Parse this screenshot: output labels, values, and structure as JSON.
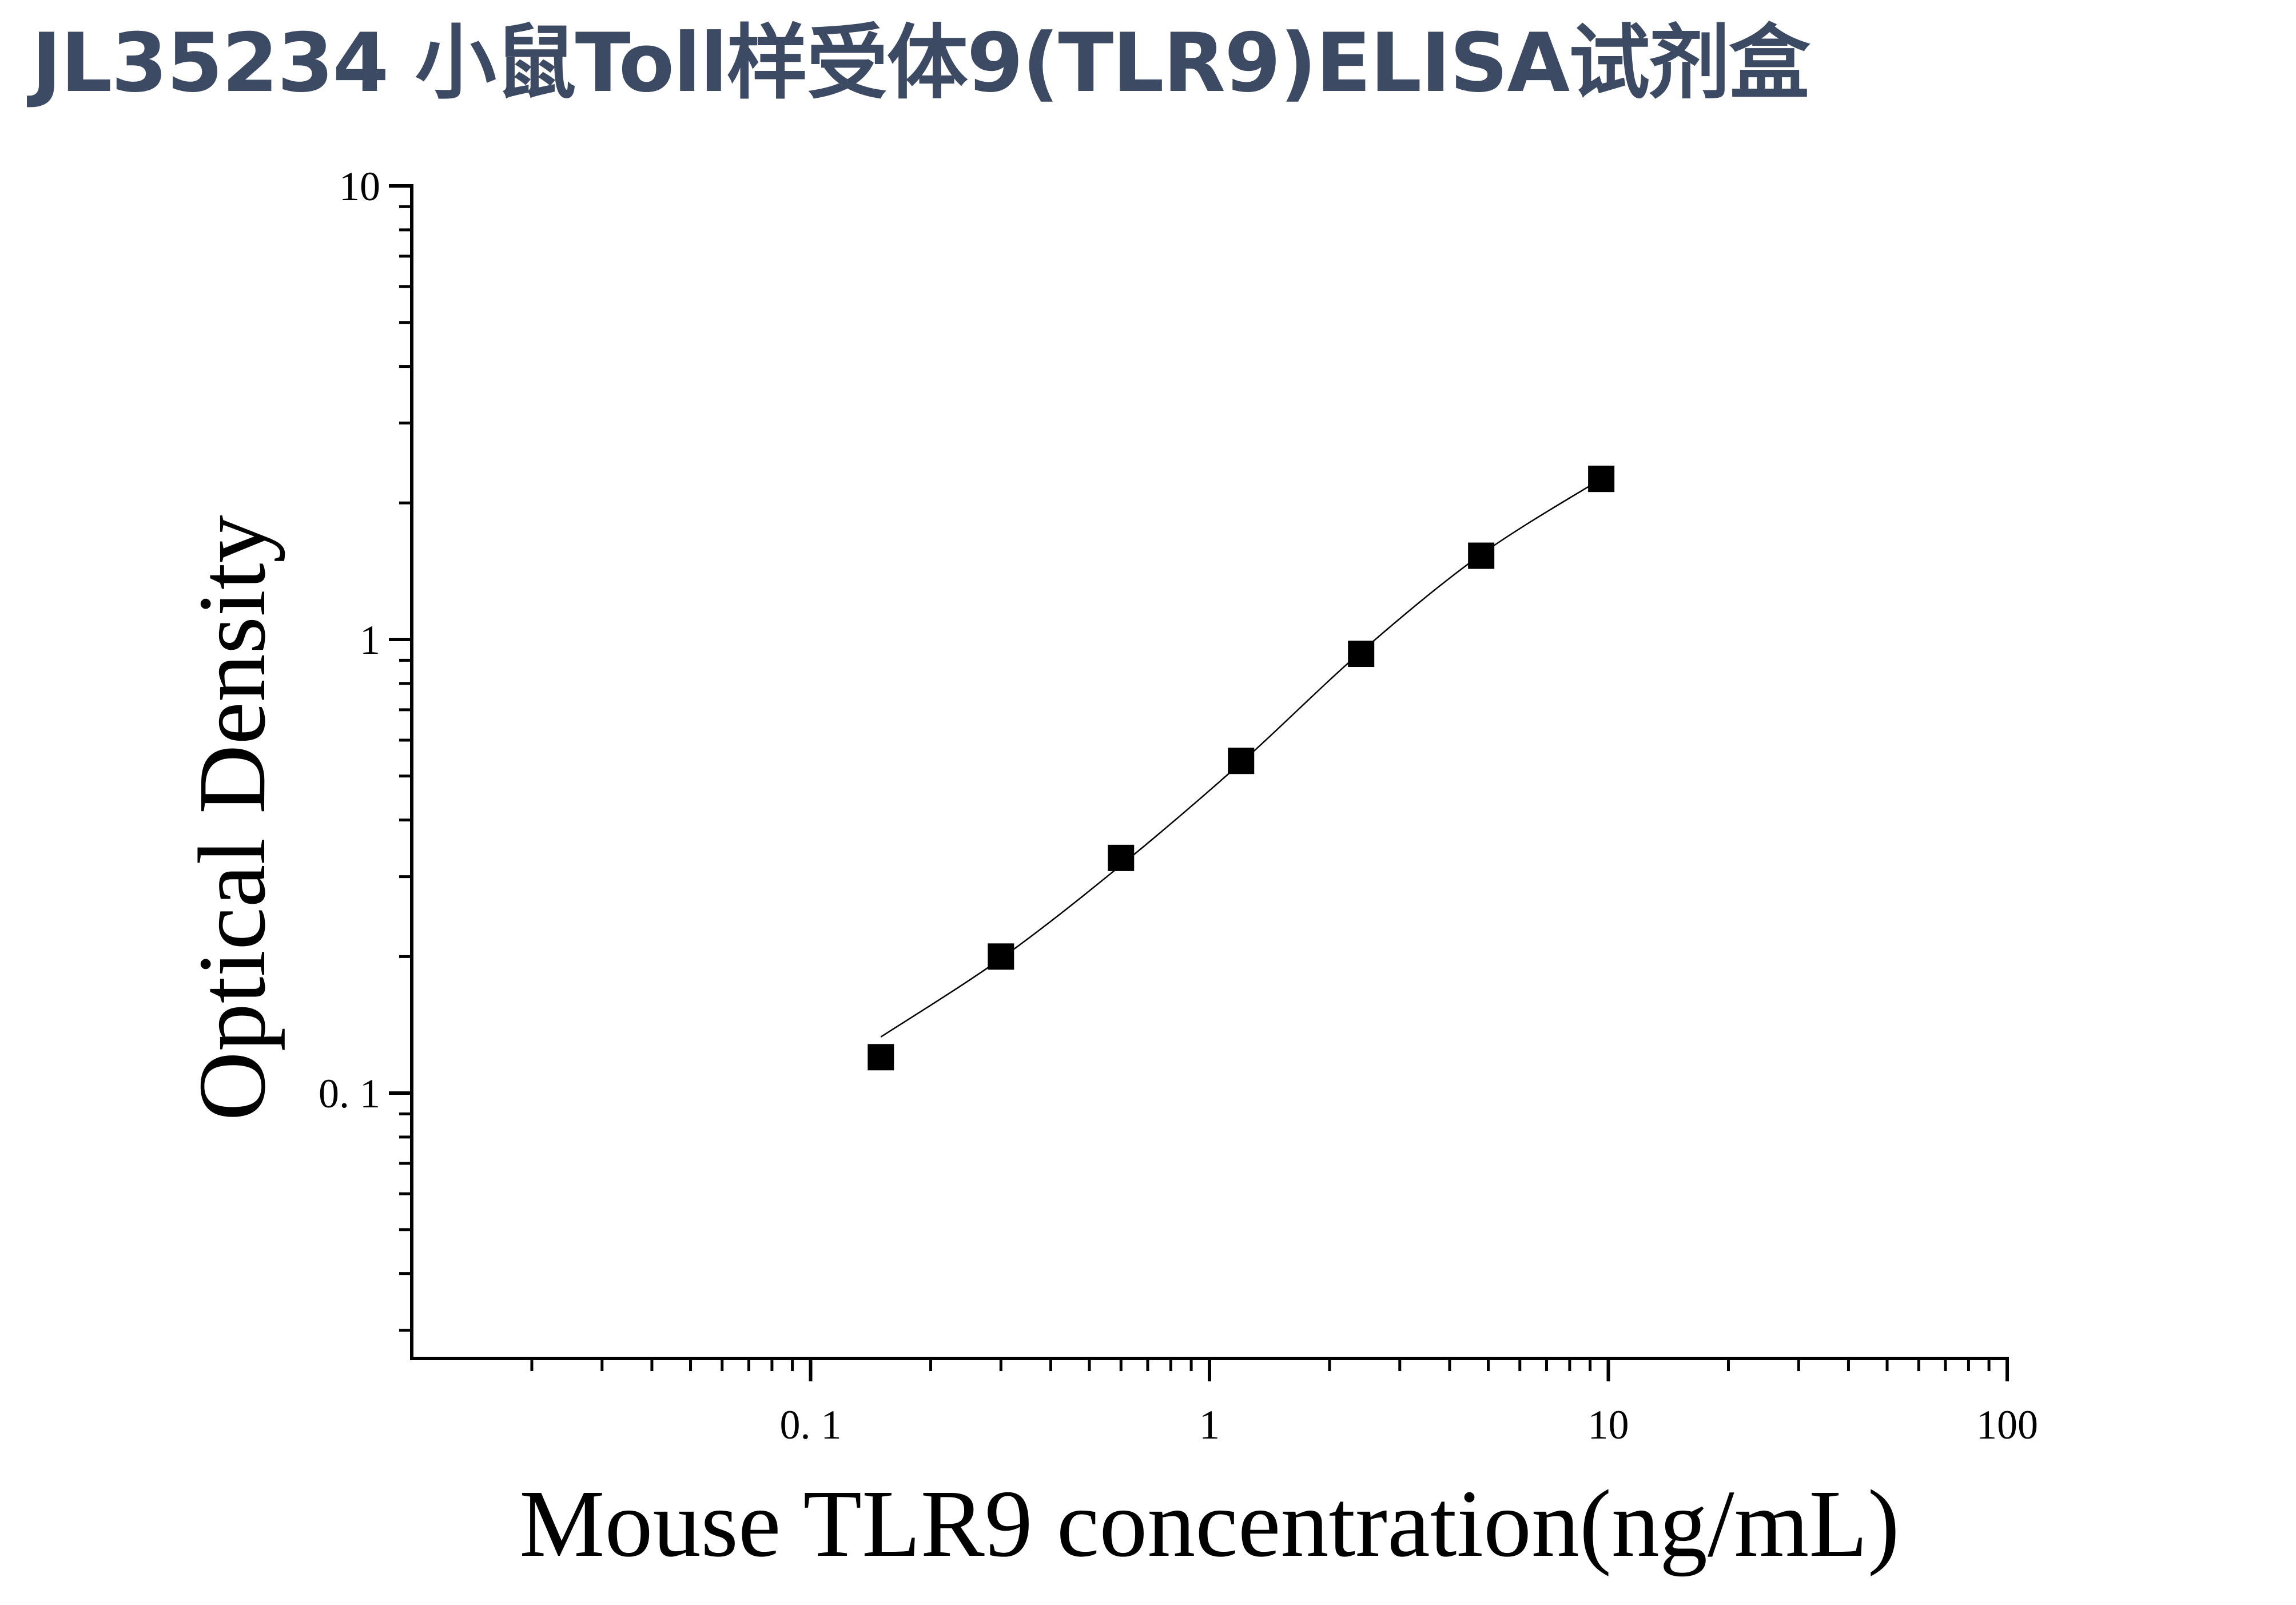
{
  "page": {
    "title": "JL35234 小鼠Toll样受体9(TLR9)ELISA试剂盒"
  },
  "chart_data": {
    "type": "scatter",
    "title": "JL35234 小鼠Toll样受体9(TLR9)ELISA试剂盒",
    "xlabel": "Mouse TLR9 concentration(ng/mL)",
    "ylabel": "Optical Density",
    "xscale": "log",
    "yscale": "log",
    "xlim": [
      0.01,
      100
    ],
    "ylim": [
      0.026,
      10
    ],
    "x_ticks": [
      {
        "value": 0.1,
        "label": "0. 1"
      },
      {
        "value": 1,
        "label": "1"
      },
      {
        "value": 10,
        "label": "10"
      },
      {
        "value": 100,
        "label": "100"
      }
    ],
    "y_ticks": [
      {
        "value": 0.1,
        "label": "0. 1"
      },
      {
        "value": 1,
        "label": "1"
      },
      {
        "value": 10,
        "label": "10"
      }
    ],
    "series": [
      {
        "marker": "square",
        "color": "#000000",
        "x": [
          0.15,
          0.3,
          0.6,
          1.2,
          2.4,
          4.8,
          9.6
        ],
        "y": [
          0.12,
          0.2,
          0.33,
          0.54,
          0.93,
          1.53,
          2.26
        ]
      }
    ],
    "fit_curve": {
      "color": "#000000",
      "x": [
        0.15,
        0.3,
        0.6,
        1.2,
        2.4,
        4.8,
        9.6
      ],
      "y": [
        0.133,
        0.198,
        0.318,
        0.535,
        0.94,
        1.54,
        2.26
      ]
    },
    "grid": false,
    "legend": "none",
    "axis_color": "#000000"
  }
}
